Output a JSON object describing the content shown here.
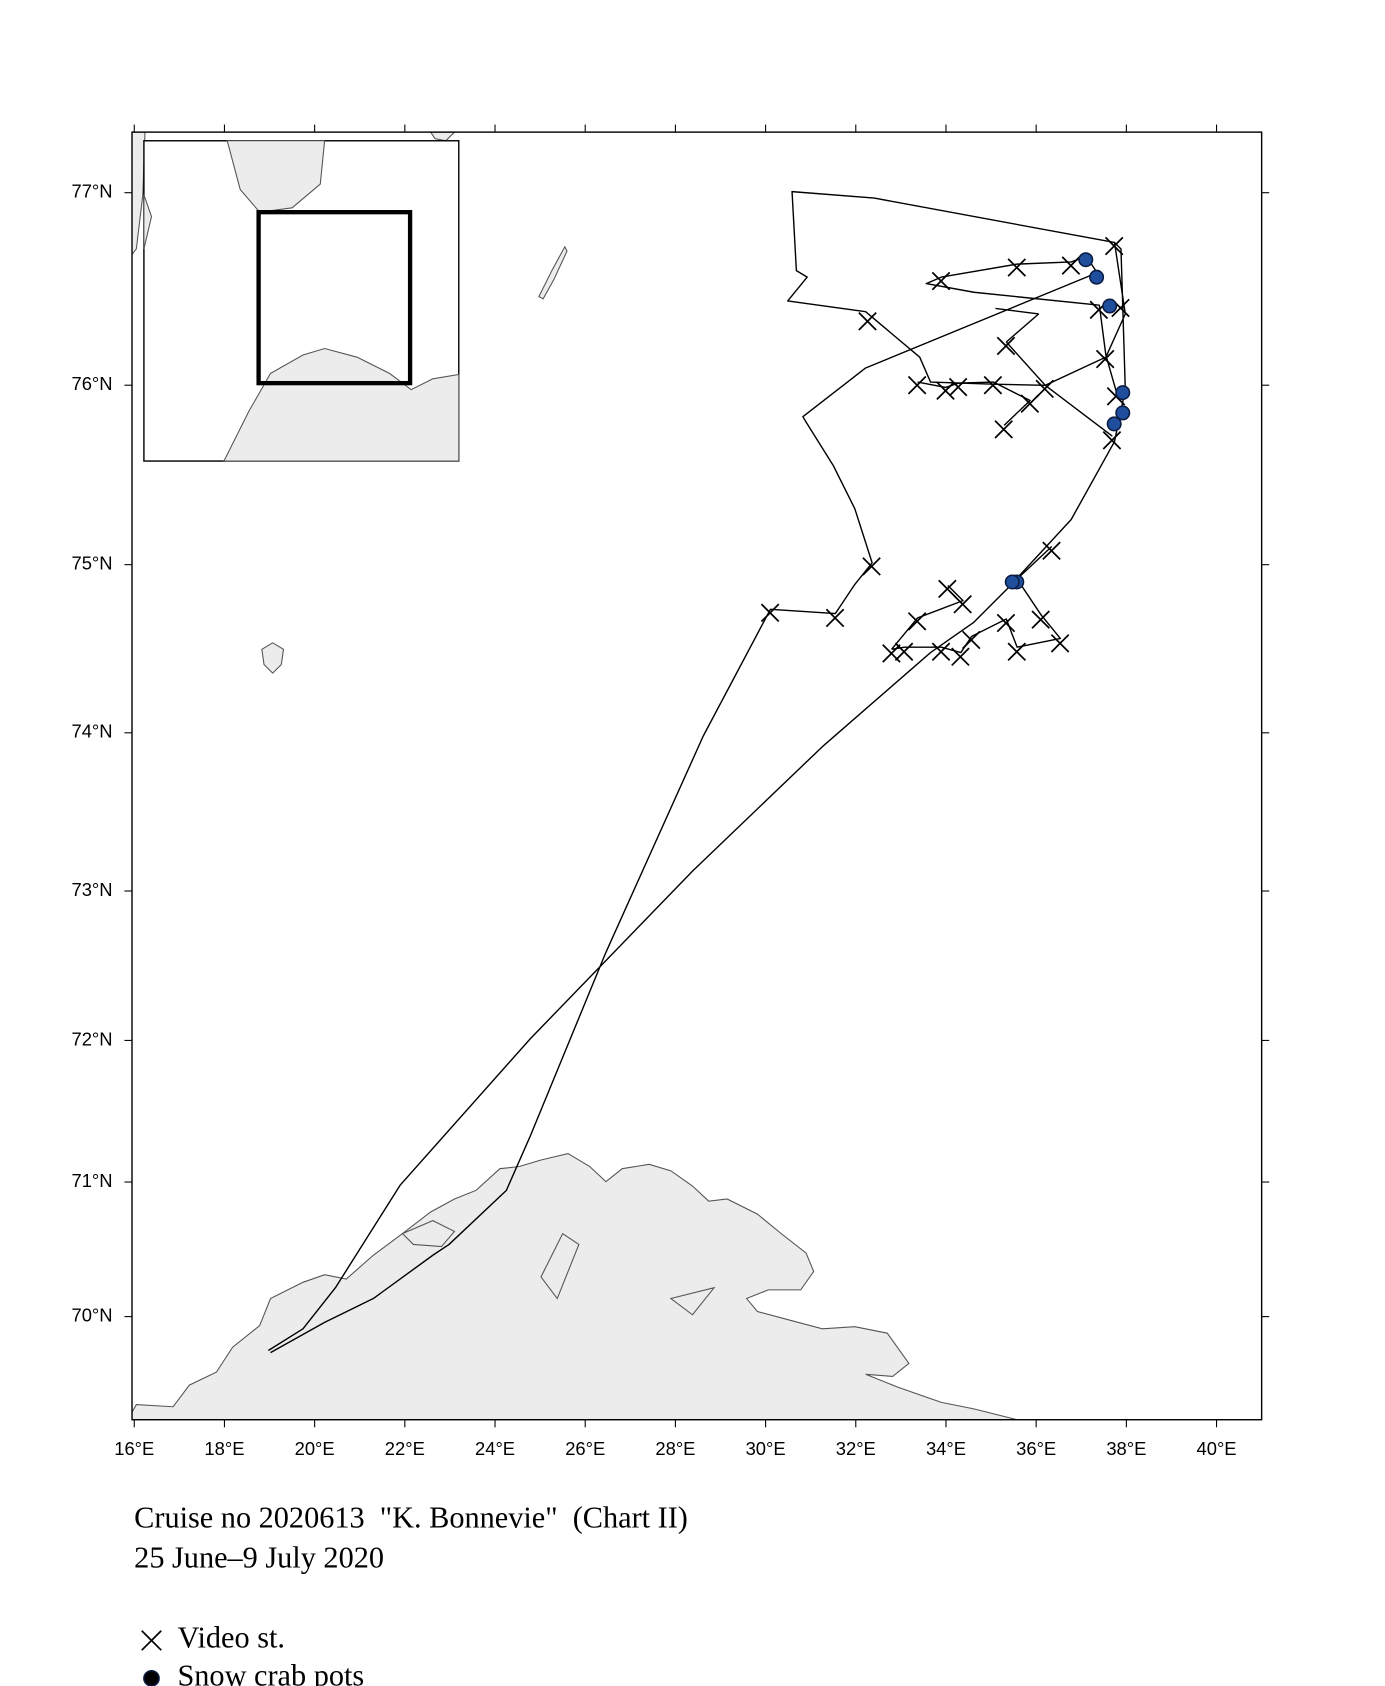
{
  "chart_data": {
    "type": "scatter",
    "projection": "mercator",
    "title": "Cruise no 2020613  \"K. Bonnevie\"  (Chart II)",
    "subtitle": "25 June–9 July 2020",
    "xlim": [
      15.95,
      41.0
    ],
    "ylim": [
      69.2,
      77.3
    ],
    "xticks": [
      {
        "value": 16,
        "label": "16°E"
      },
      {
        "value": 18,
        "label": "18°E"
      },
      {
        "value": 20,
        "label": "20°E"
      },
      {
        "value": 22,
        "label": "22°E"
      },
      {
        "value": 24,
        "label": "24°E"
      },
      {
        "value": 26,
        "label": "26°E"
      },
      {
        "value": 28,
        "label": "28°E"
      },
      {
        "value": 30,
        "label": "30°E"
      },
      {
        "value": 32,
        "label": "32°E"
      },
      {
        "value": 34,
        "label": "34°E"
      },
      {
        "value": 36,
        "label": "36°E"
      },
      {
        "value": 38,
        "label": "38°E"
      },
      {
        "value": 40,
        "label": "40°E"
      }
    ],
    "yticks": [
      {
        "value": 70,
        "label": "70°N"
      },
      {
        "value": 71,
        "label": "71°N"
      },
      {
        "value": 72,
        "label": "72°N"
      },
      {
        "value": 73,
        "label": "73°N"
      },
      {
        "value": 74,
        "label": "74°N"
      },
      {
        "value": 75,
        "label": "75°N"
      },
      {
        "value": 76,
        "label": "76°N"
      },
      {
        "value": 77,
        "label": "77°N"
      }
    ],
    "series": [
      {
        "name": "Video st.",
        "marker": "x",
        "color": "#000000",
        "x": [
          37.73,
          33.89,
          35.57,
          36.77,
          32.26,
          37.87,
          37.39,
          35.33,
          37.53,
          33.36,
          33.99,
          34.27,
          35.04,
          36.19,
          35.86,
          35.28,
          37.77,
          37.68,
          32.35,
          30.1,
          31.54,
          34.03,
          34.37,
          33.36,
          36.34,
          32.79,
          33.07,
          33.89,
          34.32,
          34.56,
          35.33,
          35.57,
          36.1,
          36.53
        ],
        "y": [
          76.73,
          76.55,
          76.62,
          76.63,
          76.34,
          76.41,
          76.4,
          76.21,
          76.14,
          76.0,
          75.97,
          75.99,
          76.0,
          75.98,
          75.9,
          75.76,
          75.94,
          75.7,
          74.99,
          74.72,
          74.69,
          74.86,
          74.77,
          74.67,
          75.08,
          74.48,
          74.49,
          74.49,
          74.46,
          74.56,
          74.66,
          74.49,
          74.68,
          74.54
        ]
      },
      {
        "name": "Snow crab pots",
        "marker": "circle",
        "color": "#1f4e9c",
        "x": [
          37.1,
          37.34,
          37.63,
          37.92,
          37.92,
          37.73,
          35.57,
          35.47
        ],
        "y": [
          76.66,
          76.57,
          76.42,
          75.96,
          75.85,
          75.79,
          74.9,
          74.9
        ]
      }
    ]
  }
}
